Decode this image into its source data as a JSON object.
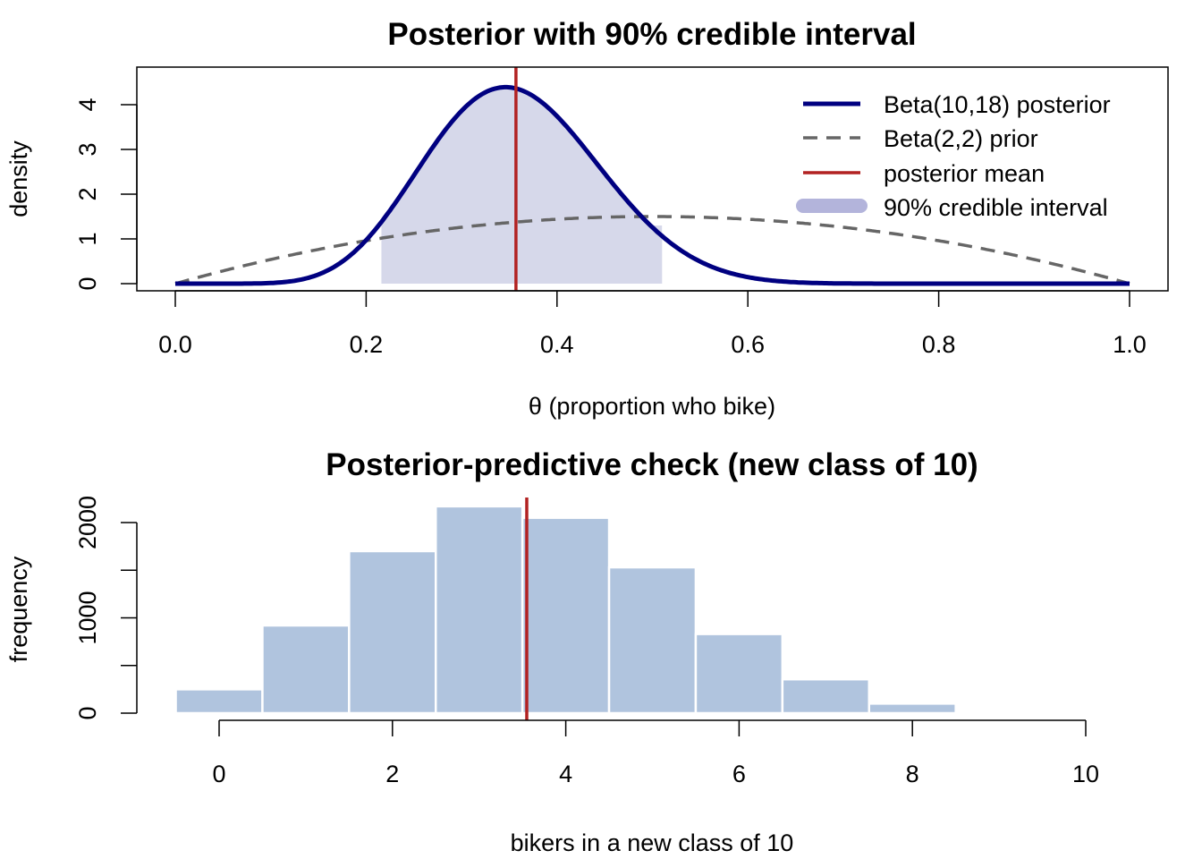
{
  "colors": {
    "posterior": "#000080",
    "prior": "#666666",
    "mean_line": "#B22222",
    "ci_fill": "#D6D8EA",
    "ci_legend": "#B3B4DB",
    "bars": "#B0C4DE"
  },
  "chart_data": [
    {
      "type": "line",
      "title": "Posterior with 90% credible interval",
      "xlabel": "θ (proportion who bike)",
      "ylabel": "density",
      "xlim": [
        0,
        1
      ],
      "ylim": [
        0,
        4.4
      ],
      "x_ticks": [
        0,
        0.2,
        0.4,
        0.6,
        0.8,
        1
      ],
      "x_tick_labels": [
        "0.0",
        "0.2",
        "0.4",
        "0.6",
        "0.8",
        "1.0"
      ],
      "y_ticks": [
        0,
        1,
        2,
        3,
        4
      ],
      "y_tick_labels": [
        "0",
        "1",
        "2",
        "3",
        "4"
      ],
      "grid": false,
      "legend_position": "top-right",
      "series": [
        {
          "name": "Beta(10,18) posterior",
          "distribution": "beta",
          "a": 10,
          "b": 18,
          "style": "solid"
        },
        {
          "name": "Beta(2,2) prior",
          "distribution": "beta",
          "a": 2,
          "b": 2,
          "style": "dashed"
        }
      ],
      "mean_line": {
        "name": "posterior mean",
        "x": 0.357
      },
      "credible_interval": {
        "name": "90% credible interval",
        "lower": 0.216,
        "upper": 0.51
      },
      "legend": [
        "Beta(10,18) posterior",
        "Beta(2,2) prior",
        "posterior mean",
        "90% credible interval"
      ]
    },
    {
      "type": "bar",
      "title": "Posterior-predictive check (new class of 10)",
      "xlabel": "bikers in a new class of 10",
      "ylabel": "frequency",
      "xlim": [
        -0.5,
        10
      ],
      "ylim": [
        0,
        2200
      ],
      "x_ticks": [
        0,
        2,
        4,
        6,
        8,
        10
      ],
      "x_tick_labels": [
        "0",
        "2",
        "4",
        "6",
        "8",
        "10"
      ],
      "y_ticks": [
        0,
        1000,
        2000
      ],
      "y_tick_labels": [
        "0",
        "1000",
        "2000"
      ],
      "grid": false,
      "categories": [
        0,
        1,
        2,
        3,
        4,
        5,
        6,
        7,
        8
      ],
      "values": [
        250,
        920,
        1700,
        2170,
        2050,
        1530,
        830,
        355,
        100
      ],
      "mean_line": {
        "x": 3.55
      }
    }
  ]
}
